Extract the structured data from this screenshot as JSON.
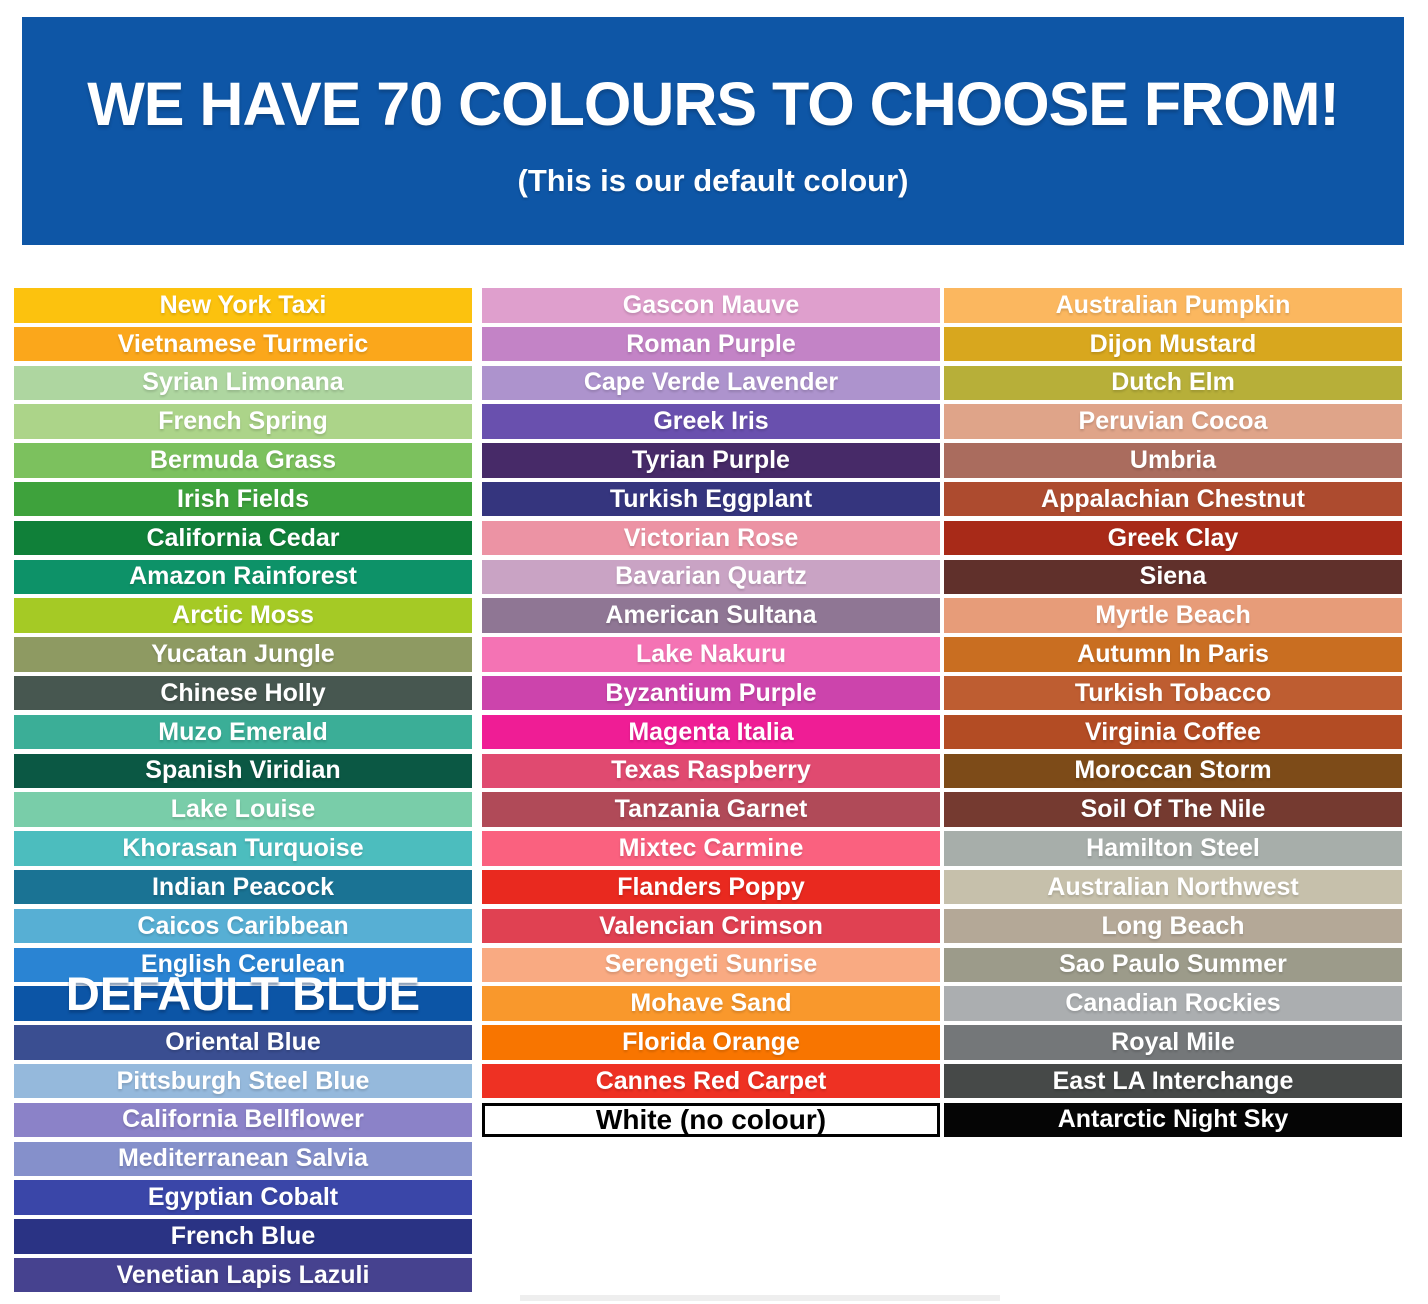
{
  "header": {
    "title": "WE HAVE 70 COLOURS TO CHOOSE FROM!",
    "subtitle": "(This is our default colour)",
    "background": "#0E56A6",
    "text_color": "#FFFFFF"
  },
  "swatch_columns": [
    {
      "name": "left",
      "swatches": [
        {
          "label": "New York Taxi",
          "color": "#FCC20E"
        },
        {
          "label": "Vietnamese Turmeric",
          "color": "#FBA71B"
        },
        {
          "label": "Syrian Limonana",
          "color": "#AED6A0"
        },
        {
          "label": "French Spring",
          "color": "#ACD489"
        },
        {
          "label": "Bermuda Grass",
          "color": "#7CC15E"
        },
        {
          "label": "Irish Fields",
          "color": "#3EA23C"
        },
        {
          "label": "California Cedar",
          "color": "#108039"
        },
        {
          "label": "Amazon Rainforest",
          "color": "#0D9268"
        },
        {
          "label": "Arctic Moss",
          "color": "#A5CA25"
        },
        {
          "label": "Yucatan Jungle",
          "color": "#8E9A62"
        },
        {
          "label": "Chinese Holly",
          "color": "#475750"
        },
        {
          "label": "Muzo Emerald",
          "color": "#3BAE97"
        },
        {
          "label": "Spanish Viridian",
          "color": "#0B5844"
        },
        {
          "label": "Lake Louise",
          "color": "#79CDA9"
        },
        {
          "label": "Khorasan Turquoise",
          "color": "#4CBDBE"
        },
        {
          "label": "Indian Peacock",
          "color": "#1A7394"
        },
        {
          "label": "Caicos Caribbean",
          "color": "#57AFD4"
        },
        {
          "label": "English Cerulean",
          "color": "#2A84D3"
        },
        {
          "label": "DEFAULT BLUE",
          "color": "#0C55A6",
          "variant": "default-large"
        },
        {
          "label": "Oriental Blue",
          "color": "#3A4E91"
        },
        {
          "label": "Pittsburgh Steel Blue",
          "color": "#95B9DC"
        },
        {
          "label": "California Bellflower",
          "color": "#8B82C8"
        },
        {
          "label": "Mediterranean Salvia",
          "color": "#8590CB"
        },
        {
          "label": "Egyptian Cobalt",
          "color": "#3A46A8"
        },
        {
          "label": "French Blue",
          "color": "#2A3384"
        },
        {
          "label": "Venetian Lapis Lazuli",
          "color": "#46428F"
        }
      ]
    },
    {
      "name": "middle",
      "swatches": [
        {
          "label": "Gascon Mauve",
          "color": "#DF9FCD"
        },
        {
          "label": "Roman Purple",
          "color": "#C383C6"
        },
        {
          "label": "Cape Verde Lavender",
          "color": "#AD93CD"
        },
        {
          "label": "Greek Iris",
          "color": "#6950AE"
        },
        {
          "label": "Tyrian Purple",
          "color": "#472A68"
        },
        {
          "label": "Turkish Eggplant",
          "color": "#35357E"
        },
        {
          "label": "Victorian Rose",
          "color": "#EC93A4"
        },
        {
          "label": "Bavarian Quartz",
          "color": "#C9A3C4"
        },
        {
          "label": "American Sultana",
          "color": "#8F7694"
        },
        {
          "label": "Lake Nakuru",
          "color": "#F473B4"
        },
        {
          "label": "Byzantium Purple",
          "color": "#CC44AC"
        },
        {
          "label": "Magenta Italia",
          "color": "#EF1D95"
        },
        {
          "label": "Texas Raspberry",
          "color": "#E04A70"
        },
        {
          "label": "Tanzania Garnet",
          "color": "#B04A58"
        },
        {
          "label": "Mixtec Carmine",
          "color": "#FA617F"
        },
        {
          "label": "Flanders Poppy",
          "color": "#E9291F"
        },
        {
          "label": "Valencian Crimson",
          "color": "#E04152"
        },
        {
          "label": "Serengeti Sunrise",
          "color": "#F9AA82"
        },
        {
          "label": "Mohave Sand",
          "color": "#F9982C"
        },
        {
          "label": "Florida Orange",
          "color": "#F87500"
        },
        {
          "label": "Cannes Red Carpet",
          "color": "#EE3123"
        },
        {
          "label": "White (no colour)",
          "color": "#FFFFFF",
          "variant": "white-outline",
          "text_color": "#000000"
        }
      ]
    },
    {
      "name": "right",
      "swatches": [
        {
          "label": "Australian Pumpkin",
          "color": "#FBB75F"
        },
        {
          "label": "Dijon Mustard",
          "color": "#D8A71E"
        },
        {
          "label": "Dutch Elm",
          "color": "#B7AF39"
        },
        {
          "label": "Peruvian Cocoa",
          "color": "#DFA489"
        },
        {
          "label": "Umbria",
          "color": "#AA6C5E"
        },
        {
          "label": "Appalachian Chestnut",
          "color": "#AD4B2F"
        },
        {
          "label": "Greek Clay",
          "color": "#A82A18"
        },
        {
          "label": "Siena",
          "color": "#60302B"
        },
        {
          "label": "Myrtle Beach",
          "color": "#E79C79"
        },
        {
          "label": "Autumn In Paris",
          "color": "#C96E21"
        },
        {
          "label": "Turkish Tobacco",
          "color": "#BE5D31"
        },
        {
          "label": "Virginia Coffee",
          "color": "#B34C24"
        },
        {
          "label": "Moroccan Storm",
          "color": "#7D4B18"
        },
        {
          "label": "Soil Of The Nile",
          "color": "#753A30"
        },
        {
          "label": "Hamilton Steel",
          "color": "#A7AEAA"
        },
        {
          "label": "Australian Northwest",
          "color": "#C6C0AB"
        },
        {
          "label": "Long Beach",
          "color": "#B4A897"
        },
        {
          "label": "Sao Paulo Summer",
          "color": "#9C9B8A"
        },
        {
          "label": "Canadian Rockies",
          "color": "#ABAEB0"
        },
        {
          "label": "Royal Mile",
          "color": "#747779"
        },
        {
          "label": "East LA Interchange",
          "color": "#464948"
        },
        {
          "label": "Antarctic Night Sky",
          "color": "#050505"
        }
      ]
    }
  ]
}
